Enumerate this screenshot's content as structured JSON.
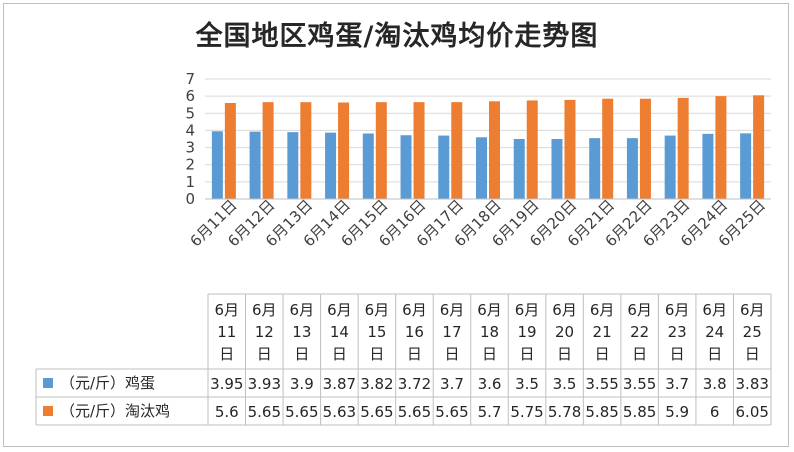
{
  "chart_data": {
    "type": "bar",
    "title": "全国地区鸡蛋/淘汰鸡均价走势图",
    "categories": [
      "6月11日",
      "6月12日",
      "6月13日",
      "6月14日",
      "6月15日",
      "6月16日",
      "6月17日",
      "6月18日",
      "6月19日",
      "6月20日",
      "6月21日",
      "6月22日",
      "6月23日",
      "6月24日",
      "6月25日"
    ],
    "table_headers": [
      [
        "6月",
        "11",
        "日"
      ],
      [
        "6月",
        "12",
        "日"
      ],
      [
        "6月",
        "13",
        "日"
      ],
      [
        "6月",
        "14",
        "日"
      ],
      [
        "6月",
        "15",
        "日"
      ],
      [
        "6月",
        "16",
        "日"
      ],
      [
        "6月",
        "17",
        "日"
      ],
      [
        "6月",
        "18",
        "日"
      ],
      [
        "6月",
        "19",
        "日"
      ],
      [
        "6月",
        "20",
        "日"
      ],
      [
        "6月",
        "21",
        "日"
      ],
      [
        "6月",
        "22",
        "日"
      ],
      [
        "6月",
        "23",
        "日"
      ],
      [
        "6月",
        "24",
        "日"
      ],
      [
        "6月",
        "25",
        "日"
      ]
    ],
    "series": [
      {
        "name": "（元/斤）鸡蛋",
        "color": "#5b9bd5",
        "values": [
          3.95,
          3.93,
          3.9,
          3.87,
          3.82,
          3.72,
          3.7,
          3.6,
          3.5,
          3.5,
          3.55,
          3.55,
          3.7,
          3.8,
          3.83
        ],
        "labels": [
          "3.95",
          "3.93",
          "3.9",
          "3.87",
          "3.82",
          "3.72",
          "3.7",
          "3.6",
          "3.5",
          "3.5",
          "3.55",
          "3.55",
          "3.7",
          "3.8",
          "3.83"
        ]
      },
      {
        "name": "（元/斤）淘汰鸡",
        "color": "#ed7d31",
        "values": [
          5.6,
          5.65,
          5.65,
          5.63,
          5.65,
          5.65,
          5.65,
          5.7,
          5.75,
          5.78,
          5.85,
          5.85,
          5.9,
          6,
          6.05
        ],
        "labels": [
          "5.6",
          "5.65",
          "5.65",
          "5.63",
          "5.65",
          "5.65",
          "5.65",
          "5.7",
          "5.75",
          "5.78",
          "5.85",
          "5.85",
          "5.9",
          "6",
          "6.05"
        ]
      }
    ],
    "ylim": [
      0,
      7
    ],
    "yticks": [
      "0",
      "1",
      "2",
      "3",
      "4",
      "5",
      "6",
      "7"
    ],
    "grid": true,
    "legend": "data-table"
  }
}
